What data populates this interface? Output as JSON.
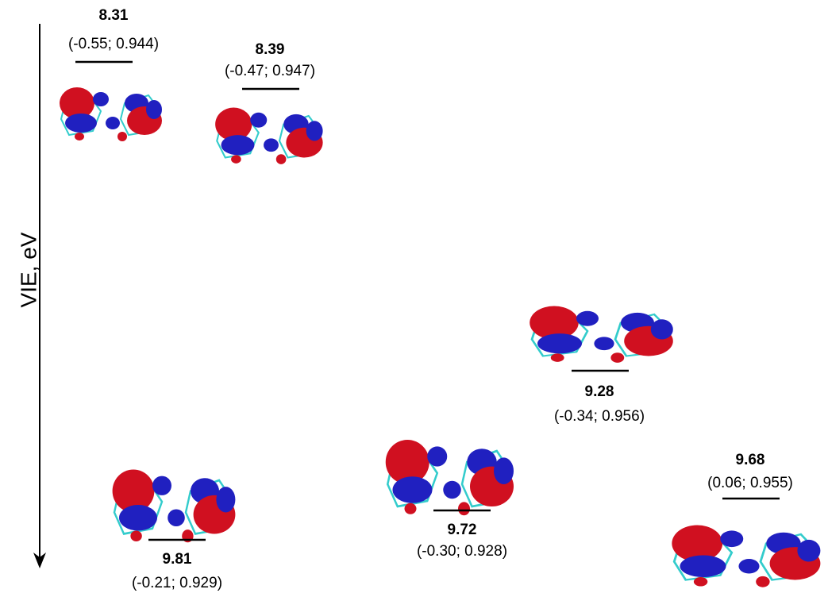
{
  "axis_label": "VIE, eV",
  "levels": [
    {
      "energy": "8.31",
      "detail": "(-0.55; 0.944)"
    },
    {
      "energy": "8.39",
      "detail": "(-0.47; 0.947)"
    },
    {
      "energy": "9.28",
      "detail": "(-0.34; 0.956)"
    },
    {
      "energy": "9.81",
      "detail": "(-0.21; 0.929)"
    },
    {
      "energy": "9.72",
      "detail": "(-0.30; 0.928)"
    },
    {
      "energy": "9.68",
      "detail": "(0.06; 0.955)"
    }
  ]
}
